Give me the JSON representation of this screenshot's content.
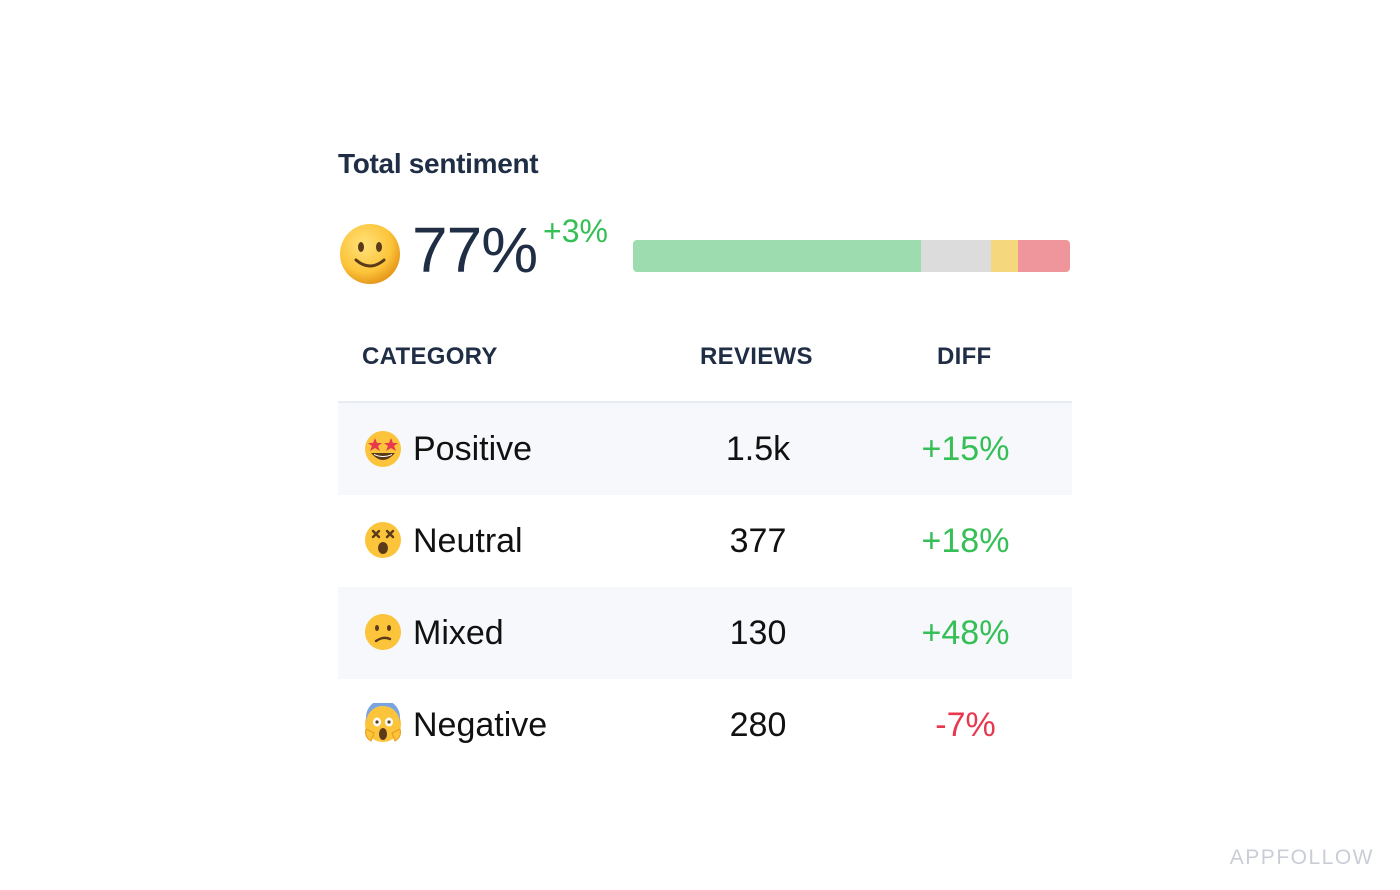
{
  "title": "Total sentiment",
  "summary": {
    "face_icon": "slightly-smiling-face-icon",
    "percent": "77%",
    "diff": "+3%",
    "diff_color": "#35bf56",
    "distribution": [
      {
        "name": "positive",
        "fraction": 0.66,
        "color": "#9ddcaf"
      },
      {
        "name": "neutral",
        "fraction": 0.16,
        "color": "#dcdcdc"
      },
      {
        "name": "mixed",
        "fraction": 0.06,
        "color": "#f5d77e"
      },
      {
        "name": "negative",
        "fraction": 0.12,
        "color": "#ef959c"
      }
    ]
  },
  "table": {
    "headers": {
      "category": "CATEGORY",
      "reviews": "REVIEWS",
      "diff": "DIFF"
    },
    "rows": [
      {
        "emoji": "star-struck-face-icon",
        "label": "Positive",
        "reviews": "1.5k",
        "diff": "+15%",
        "diff_color": "#35bf56"
      },
      {
        "emoji": "dizzy-face-icon",
        "label": "Neutral",
        "reviews": "377",
        "diff": "+18%",
        "diff_color": "#35bf56"
      },
      {
        "emoji": "confused-face-icon",
        "label": "Mixed",
        "reviews": "130",
        "diff": "+48%",
        "diff_color": "#35bf56"
      },
      {
        "emoji": "screaming-face-icon",
        "label": "Negative",
        "reviews": "280",
        "diff": "-7%",
        "diff_color": "#e8384f"
      }
    ]
  },
  "watermark": "APPFOLLOW"
}
